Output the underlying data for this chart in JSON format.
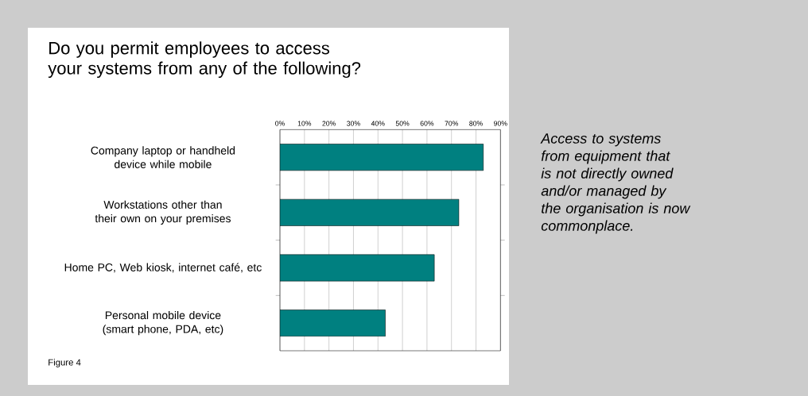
{
  "chart_data": {
    "type": "bar",
    "orientation": "horizontal",
    "title": "Do you permit employees to access your systems from any of the following?",
    "categories": [
      "Company laptop or handheld device while mobile",
      "Workstations other than their own on your premises",
      "Home PC, Web kiosk, internet café, etc",
      "Personal mobile device (smart phone, PDA, etc)"
    ],
    "values": [
      83,
      73,
      63,
      43
    ],
    "color": "#008080",
    "xlim": [
      0,
      90
    ],
    "xticks": [
      {
        "value": 0,
        "label": "0%"
      },
      {
        "value": 10,
        "label": "10%"
      },
      {
        "value": 20,
        "label": "20%"
      },
      {
        "value": 30,
        "label": "30%"
      },
      {
        "value": 40,
        "label": "40%"
      },
      {
        "value": 50,
        "label": "50%"
      },
      {
        "value": 60,
        "label": "60%"
      },
      {
        "value": 70,
        "label": "70%"
      },
      {
        "value": 80,
        "label": "80%"
      },
      {
        "value": 90,
        "label": "90%"
      }
    ],
    "grid": "x",
    "annotations": [
      "Access to systems from equipment that is not directly owned and/or managed by the organisation is now commonplace.",
      "Figure 4"
    ]
  }
}
